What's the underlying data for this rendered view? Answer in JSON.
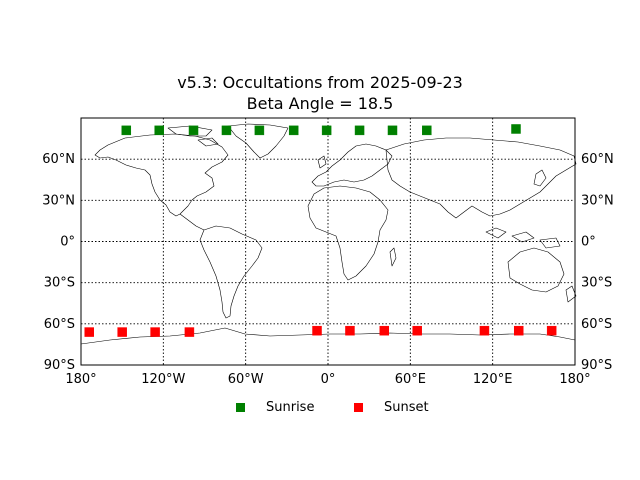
{
  "title": {
    "line1": "v5.3: Occultations from 2025-09-23",
    "line2": "Beta Angle = 18.5"
  },
  "map": {
    "projection": "equirectangular",
    "lon_range": [
      -180,
      180
    ],
    "lat_range": [
      -90,
      90
    ],
    "grid": true,
    "lon_ticks": [
      {
        "value": -180,
        "label": "180°"
      },
      {
        "value": -120,
        "label": "120°W"
      },
      {
        "value": -60,
        "label": "60°W"
      },
      {
        "value": 0,
        "label": "0°"
      },
      {
        "value": 60,
        "label": "60°E"
      },
      {
        "value": 120,
        "label": "120°E"
      },
      {
        "value": 180,
        "label": "180°"
      }
    ],
    "lat_ticks": [
      {
        "value": 60,
        "label": "60°N"
      },
      {
        "value": 30,
        "label": "30°N"
      },
      {
        "value": 0,
        "label": "0°"
      },
      {
        "value": -30,
        "label": "30°S"
      },
      {
        "value": -60,
        "label": "60°S"
      },
      {
        "value": -90,
        "label": "90°S"
      }
    ]
  },
  "chart_data": {
    "type": "scatter",
    "title": "v5.3: Occultations from 2025-09-23\nBeta Angle = 18.5",
    "xlim": [
      -180,
      180
    ],
    "ylim": [
      -90,
      90
    ],
    "legend_position": "bottom-center",
    "series": [
      {
        "name": "Sunrise",
        "color": "#008000",
        "marker": "square",
        "points": [
          {
            "lon": -147,
            "lat": 81
          },
          {
            "lon": -123,
            "lat": 81
          },
          {
            "lon": -98,
            "lat": 81
          },
          {
            "lon": -74,
            "lat": 81
          },
          {
            "lon": -50,
            "lat": 81
          },
          {
            "lon": -25,
            "lat": 81
          },
          {
            "lon": -1,
            "lat": 81
          },
          {
            "lon": 23,
            "lat": 81
          },
          {
            "lon": 47,
            "lat": 81
          },
          {
            "lon": 72,
            "lat": 81
          },
          {
            "lon": 137,
            "lat": 82
          }
        ]
      },
      {
        "name": "Sunset",
        "color": "#ff0000",
        "marker": "square",
        "points": [
          {
            "lon": -174,
            "lat": -66
          },
          {
            "lon": -150,
            "lat": -66
          },
          {
            "lon": -126,
            "lat": -66
          },
          {
            "lon": -101,
            "lat": -66
          },
          {
            "lon": -8,
            "lat": -65
          },
          {
            "lon": 16,
            "lat": -65
          },
          {
            "lon": 41,
            "lat": -65
          },
          {
            "lon": 65,
            "lat": -65
          },
          {
            "lon": 114,
            "lat": -65
          },
          {
            "lon": 139,
            "lat": -65
          },
          {
            "lon": 163,
            "lat": -65
          }
        ]
      }
    ]
  },
  "legend": {
    "items": [
      {
        "label": "Sunrise",
        "color": "#008000"
      },
      {
        "label": "Sunset",
        "color": "#ff0000"
      }
    ]
  }
}
